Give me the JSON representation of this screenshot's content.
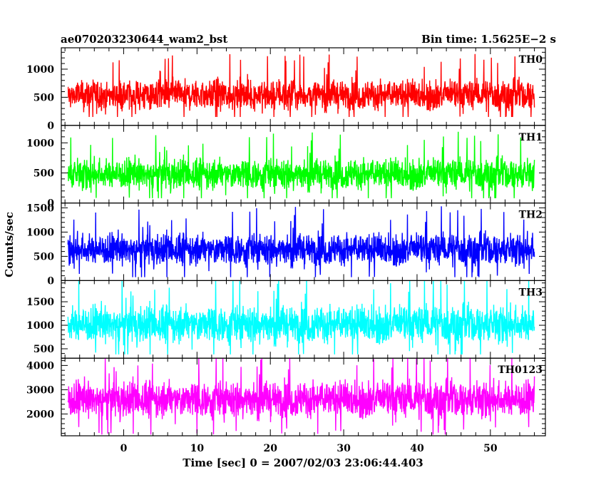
{
  "chart_data": {
    "type": "line",
    "title": "ae070203230644_wam2_bst",
    "bin_time": "Bin time: 1.5625E−2 s",
    "xlabel": "Time [sec] 0 = 2007/02/03 23:06:44.403",
    "ylabel": "Counts/sec",
    "xlim": [
      -8.5,
      57.5
    ],
    "data_x_range": [
      -7.6,
      56.0
    ],
    "x_ticks": [
      0,
      10,
      20,
      30,
      40,
      50
    ],
    "grid": false,
    "panels": [
      {
        "name": "TH0",
        "color": "#ff0000",
        "ylim": [
          0,
          1380
        ],
        "y_ticks": [
          0,
          500,
          1000
        ],
        "baseline": 540,
        "noise": 135,
        "min": 150,
        "max": 1380
      },
      {
        "name": "TH1",
        "color": "#00ff00",
        "ylim": [
          0,
          1290
        ],
        "y_ticks": [
          0,
          500,
          1000
        ],
        "baseline": 480,
        "noise": 130,
        "min": 80,
        "max": 1290
      },
      {
        "name": "TH2",
        "color": "#0000ff",
        "ylim": [
          0,
          1600
        ],
        "y_ticks": [
          0,
          500,
          1000,
          1500
        ],
        "baseline": 640,
        "noise": 165,
        "min": 70,
        "max": 1600
      },
      {
        "name": "TH3",
        "color": "#00ffff",
        "ylim": [
          300,
          1950
        ],
        "y_ticks": [
          500,
          1000,
          1500
        ],
        "baseline": 1020,
        "noise": 200,
        "min": 380,
        "max": 1950
      },
      {
        "name": "TH0123",
        "color": "#ff00ff",
        "ylim": [
          1100,
          4300
        ],
        "y_ticks": [
          2000,
          3000,
          4000
        ],
        "baseline": 2600,
        "noise": 380,
        "min": 1150,
        "max": 4300
      }
    ]
  }
}
